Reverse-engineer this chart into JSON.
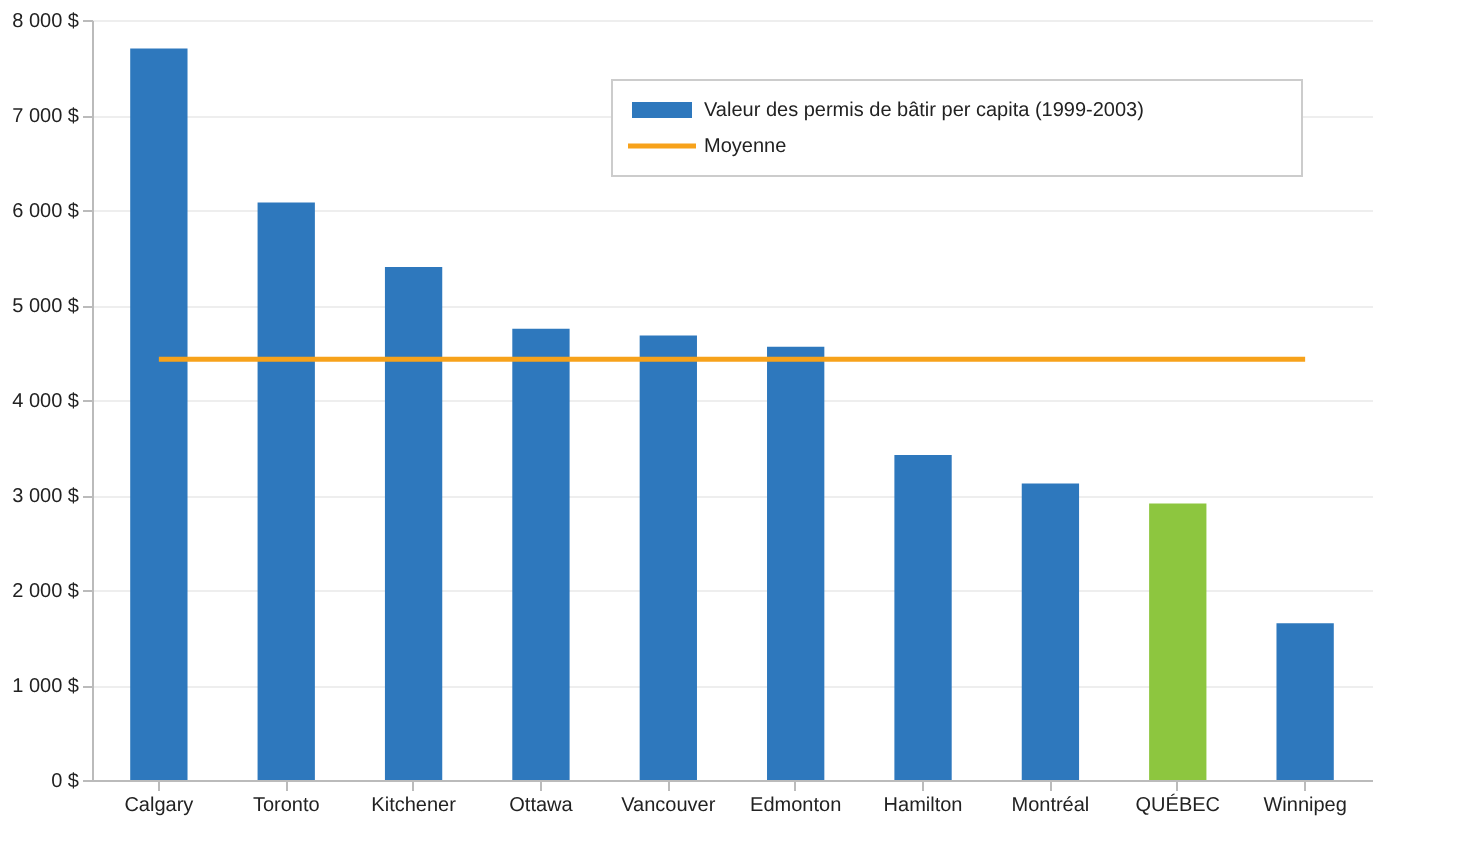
{
  "chart_data": {
    "type": "bar",
    "categories": [
      "Calgary",
      "Toronto",
      "Kitchener",
      "Ottawa",
      "Vancouver",
      "Edmonton",
      "Hamilton",
      "Montréal",
      "QUÉBEC",
      "Winnipeg"
    ],
    "series": [
      {
        "name": "Valeur des permis de bâtir per capita (1999-2003)",
        "color": "#2e78bd",
        "colors": [
          "#2e78bd",
          "#2e78bd",
          "#2e78bd",
          "#2e78bd",
          "#2e78bd",
          "#2e78bd",
          "#2e78bd",
          "#2e78bd",
          "#8dc63f",
          "#2e78bd"
        ],
        "values": [
          7700,
          6080,
          5400,
          4750,
          4680,
          4560,
          3420,
          3120,
          2910,
          1650
        ]
      }
    ],
    "ylim": [
      0,
      8000
    ],
    "yticks": [
      {
        "value": 0,
        "label": "0 $"
      },
      {
        "value": 1000,
        "label": "1 000 $"
      },
      {
        "value": 2000,
        "label": "2 000 $"
      },
      {
        "value": 3000,
        "label": "3 000 $"
      },
      {
        "value": 4000,
        "label": "4 000 $"
      },
      {
        "value": 5000,
        "label": "5 000 $"
      },
      {
        "value": 6000,
        "label": "6 000 $"
      },
      {
        "value": 7000,
        "label": "7 000 $"
      },
      {
        "value": 8000,
        "label": "8 000 $"
      }
    ],
    "ref_lines": [
      {
        "axis": "y",
        "value": 4430,
        "label": "Moyenne",
        "color": "#f7a21b",
        "line_style": "solid"
      }
    ],
    "grid": "y",
    "legend": "top right"
  }
}
